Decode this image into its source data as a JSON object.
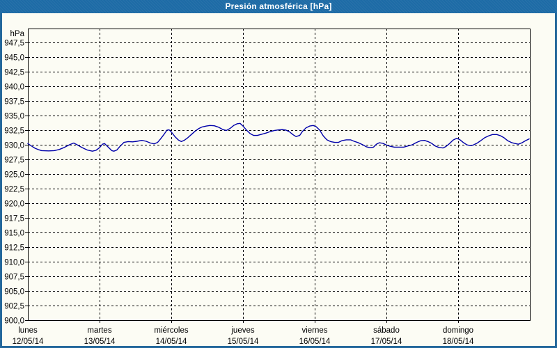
{
  "window": {
    "title": "Presión atmosférica [hPa]"
  },
  "colors": {
    "titlebar": "#1d6ba6",
    "window_border": "#24689c",
    "background": "#fcfcf4",
    "grid": "#000000",
    "axis": "#000000",
    "label_text": "#000000",
    "title_text": "#ffffff",
    "line": "#0000aa"
  },
  "chart_data": {
    "type": "line",
    "title": "Presión atmosférica [hPa]",
    "unit_label": "hPa",
    "grid": {
      "horizontal": "dashed",
      "vertical": "dashed"
    },
    "legend": "none",
    "y_axis": {
      "min": 900.0,
      "max": 947.5,
      "step": 2.5,
      "plot_top_value": 950.0,
      "decimal_separator": ",",
      "tick_labels": [
        "947,5",
        "945,0",
        "942,5",
        "940,0",
        "937,5",
        "935,0",
        "932,5",
        "930,0",
        "927,5",
        "925,0",
        "922,5",
        "920,0",
        "917,5",
        "915,0",
        "912,5",
        "910,0",
        "907,5",
        "905,0",
        "902,5",
        "900,0"
      ]
    },
    "x_axis": {
      "days": [
        {
          "weekday": "lunes",
          "date": "12/05/14"
        },
        {
          "weekday": "martes",
          "date": "13/05/14"
        },
        {
          "weekday": "miércoles",
          "date": "14/05/14"
        },
        {
          "weekday": "jueves",
          "date": "15/05/14"
        },
        {
          "weekday": "viernes",
          "date": "16/05/14"
        },
        {
          "weekday": "sábado",
          "date": "17/05/14"
        },
        {
          "weekday": "domingo",
          "date": "18/05/14"
        }
      ],
      "span_days": 7
    },
    "series": [
      {
        "name": "Presión atmosférica",
        "color": "#0000aa",
        "points_t_days_hpa": [
          [
            0.0,
            930.2
          ],
          [
            0.05,
            929.8
          ],
          [
            0.1,
            929.4
          ],
          [
            0.15,
            929.15
          ],
          [
            0.19,
            929.0
          ],
          [
            0.29,
            928.95
          ],
          [
            0.37,
            929.0
          ],
          [
            0.44,
            929.2
          ],
          [
            0.5,
            929.5
          ],
          [
            0.58,
            930.0
          ],
          [
            0.64,
            930.3
          ],
          [
            0.7,
            929.9
          ],
          [
            0.76,
            929.5
          ],
          [
            0.83,
            929.1
          ],
          [
            0.9,
            928.9
          ],
          [
            0.95,
            929.05
          ],
          [
            1.0,
            929.5
          ],
          [
            1.04,
            930.1
          ],
          [
            1.07,
            930.2
          ],
          [
            1.12,
            929.6
          ],
          [
            1.17,
            929.0
          ],
          [
            1.2,
            928.9
          ],
          [
            1.24,
            929.1
          ],
          [
            1.29,
            929.8
          ],
          [
            1.34,
            930.4
          ],
          [
            1.4,
            930.55
          ],
          [
            1.46,
            930.5
          ],
          [
            1.52,
            930.6
          ],
          [
            1.59,
            930.75
          ],
          [
            1.65,
            930.6
          ],
          [
            1.71,
            930.3
          ],
          [
            1.76,
            930.15
          ],
          [
            1.81,
            930.4
          ],
          [
            1.85,
            931.0
          ],
          [
            1.9,
            931.8
          ],
          [
            1.94,
            932.5
          ],
          [
            1.97,
            932.55
          ],
          [
            2.0,
            932.2
          ],
          [
            2.05,
            931.4
          ],
          [
            2.1,
            930.8
          ],
          [
            2.14,
            930.55
          ],
          [
            2.18,
            930.75
          ],
          [
            2.23,
            931.2
          ],
          [
            2.28,
            931.75
          ],
          [
            2.33,
            932.3
          ],
          [
            2.38,
            932.75
          ],
          [
            2.43,
            933.05
          ],
          [
            2.49,
            933.2
          ],
          [
            2.54,
            933.3
          ],
          [
            2.6,
            933.25
          ],
          [
            2.66,
            933.0
          ],
          [
            2.72,
            932.6
          ],
          [
            2.77,
            932.45
          ],
          [
            2.82,
            932.8
          ],
          [
            2.87,
            933.3
          ],
          [
            2.92,
            933.6
          ],
          [
            2.96,
            933.65
          ],
          [
            3.0,
            933.2
          ],
          [
            3.05,
            932.5
          ],
          [
            3.1,
            931.9
          ],
          [
            3.15,
            931.6
          ],
          [
            3.2,
            931.6
          ],
          [
            3.26,
            931.8
          ],
          [
            3.32,
            932.0
          ],
          [
            3.38,
            932.25
          ],
          [
            3.44,
            932.45
          ],
          [
            3.5,
            932.55
          ],
          [
            3.55,
            932.6
          ],
          [
            3.6,
            932.5
          ],
          [
            3.65,
            932.2
          ],
          [
            3.7,
            931.7
          ],
          [
            3.74,
            931.4
          ],
          [
            3.79,
            931.6
          ],
          [
            3.83,
            932.3
          ],
          [
            3.88,
            932.9
          ],
          [
            3.93,
            933.2
          ],
          [
            3.98,
            933.3
          ],
          [
            4.02,
            933.1
          ],
          [
            4.07,
            932.5
          ],
          [
            4.12,
            931.5
          ],
          [
            4.17,
            930.85
          ],
          [
            4.22,
            930.55
          ],
          [
            4.28,
            930.4
          ],
          [
            4.33,
            930.4
          ],
          [
            4.38,
            930.7
          ],
          [
            4.44,
            930.85
          ],
          [
            4.5,
            930.85
          ],
          [
            4.55,
            930.6
          ],
          [
            4.61,
            930.35
          ],
          [
            4.67,
            930.0
          ],
          [
            4.72,
            929.65
          ],
          [
            4.77,
            929.5
          ],
          [
            4.82,
            929.6
          ],
          [
            4.86,
            930.1
          ],
          [
            4.9,
            930.35
          ],
          [
            4.95,
            930.25
          ],
          [
            5.0,
            929.95
          ],
          [
            5.05,
            929.75
          ],
          [
            5.11,
            929.6
          ],
          [
            5.17,
            929.6
          ],
          [
            5.24,
            929.6
          ],
          [
            5.3,
            929.8
          ],
          [
            5.36,
            930.0
          ],
          [
            5.42,
            930.4
          ],
          [
            5.48,
            930.7
          ],
          [
            5.53,
            930.75
          ],
          [
            5.58,
            930.55
          ],
          [
            5.63,
            930.25
          ],
          [
            5.68,
            929.8
          ],
          [
            5.73,
            929.55
          ],
          [
            5.79,
            929.45
          ],
          [
            5.83,
            929.7
          ],
          [
            5.88,
            930.2
          ],
          [
            5.93,
            930.8
          ],
          [
            5.98,
            931.1
          ],
          [
            6.02,
            930.9
          ],
          [
            6.07,
            930.4
          ],
          [
            6.12,
            930.0
          ],
          [
            6.17,
            929.85
          ],
          [
            6.21,
            929.95
          ],
          [
            6.26,
            930.25
          ],
          [
            6.31,
            930.65
          ],
          [
            6.37,
            931.2
          ],
          [
            6.43,
            931.55
          ],
          [
            6.48,
            931.75
          ],
          [
            6.54,
            931.75
          ],
          [
            6.59,
            931.55
          ],
          [
            6.64,
            931.2
          ],
          [
            6.69,
            930.7
          ],
          [
            6.75,
            930.35
          ],
          [
            6.8,
            930.2
          ],
          [
            6.84,
            930.1
          ],
          [
            6.89,
            930.35
          ],
          [
            6.94,
            930.7
          ],
          [
            6.99,
            931.0
          ]
        ]
      }
    ]
  }
}
